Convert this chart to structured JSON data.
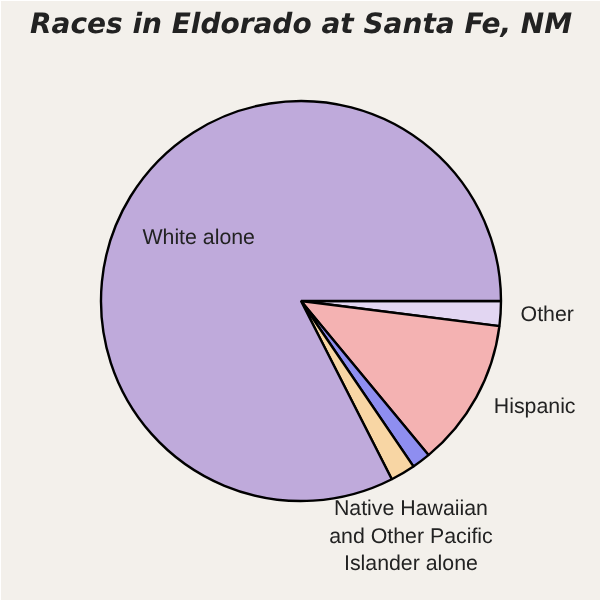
{
  "chart_data": {
    "type": "pie",
    "title": "Races in Eldorado at Santa Fe, NM",
    "categories": [
      "Other",
      "Hispanic",
      null,
      "Native Hawaiian and Other Pacific Islander alone",
      "White alone"
    ],
    "values": [
      2,
      12,
      1.5,
      2,
      82.5
    ],
    "colors": [
      "#e2d6f2",
      "#f4b2b2",
      "#8e8ef0",
      "#f8d6a4",
      "#bfaadb"
    ]
  }
}
